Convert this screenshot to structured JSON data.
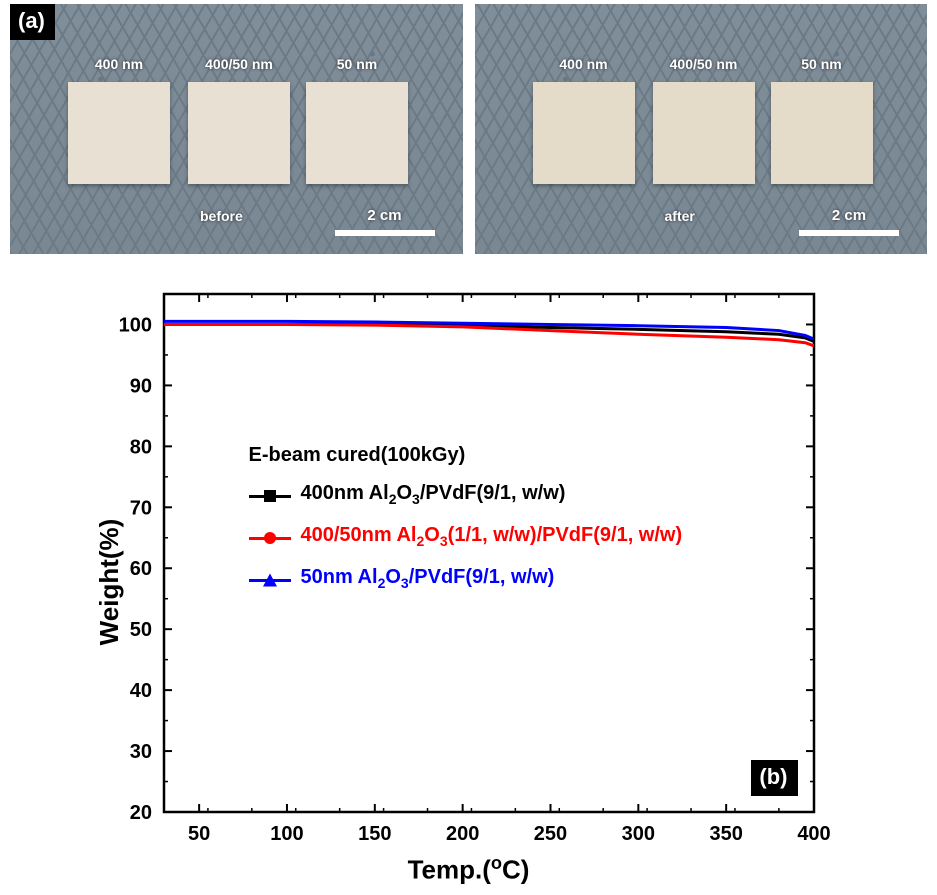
{
  "panel_a": {
    "label": "(a)",
    "scalebar_text": "2 cm",
    "swatch_labels": [
      "400 nm",
      "400/50 nm",
      "50 nm"
    ],
    "before_caption": "before",
    "after_caption": "after",
    "background_color": "#7c8a96",
    "swatch_color_before": "#e8e0d2",
    "swatch_color_after": "#e4dbc9",
    "label_color": "#ffffff",
    "scalebar_color": "#ffffff"
  },
  "chart": {
    "type": "line",
    "panel_label": "(b)",
    "xlabel_html": "Temp.(<sup>o</sup>C)",
    "ylabel": "Weight(%)",
    "label_fontsize": 26,
    "tick_fontsize": 20,
    "xlim": [
      30,
      400
    ],
    "ylim": [
      20,
      105
    ],
    "xtick_step": 50,
    "xticks": [
      50,
      100,
      150,
      200,
      250,
      300,
      350,
      400
    ],
    "yticks": [
      20,
      30,
      40,
      50,
      60,
      70,
      80,
      90,
      100
    ],
    "background_color": "#ffffff",
    "axis_color": "#000000",
    "axis_width": 2.5,
    "tick_length_major": 8,
    "tick_length_minor": 4,
    "series_linewidth": 3,
    "legend_title": "E-beam cured(100kGy)",
    "series": [
      {
        "name": "400nm",
        "label_html": "400nm Al<sub>2</sub>O<sub>3</sub>/PVdF(9/1, w/w)",
        "color": "#000000",
        "marker": "square",
        "x": [
          30,
          100,
          150,
          200,
          250,
          300,
          350,
          380,
          395,
          400
        ],
        "y": [
          100.0,
          100.0,
          100.0,
          99.8,
          99.5,
          99.2,
          98.8,
          98.4,
          97.8,
          97.2
        ]
      },
      {
        "name": "400/50nm",
        "label_html": "400/50nm Al<sub>2</sub>O<sub>3</sub>(1/1, w/w)/PVdF(9/1, w/w)",
        "color": "#ff0000",
        "marker": "circle",
        "x": [
          30,
          100,
          150,
          200,
          250,
          300,
          350,
          380,
          395,
          400
        ],
        "y": [
          100.0,
          100.0,
          99.9,
          99.6,
          99.0,
          98.4,
          97.9,
          97.5,
          97.0,
          96.5
        ]
      },
      {
        "name": "50nm",
        "label_html": "50nm Al<sub>2</sub>O<sub>3</sub>/PVdF(9/1, w/w)",
        "color": "#0000ff",
        "marker": "triangle",
        "x": [
          30,
          100,
          150,
          200,
          250,
          300,
          350,
          380,
          395,
          400
        ],
        "y": [
          100.5,
          100.5,
          100.4,
          100.2,
          100.0,
          99.8,
          99.5,
          99.0,
          98.2,
          97.6
        ]
      }
    ]
  }
}
